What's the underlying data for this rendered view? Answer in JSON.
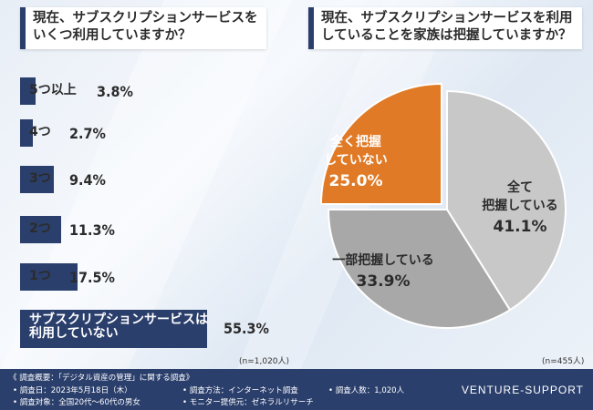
{
  "chart_data": [
    {
      "type": "bar",
      "title": "現在、サブスクリプションサービスを\nいくつ利用していますか？",
      "categories": [
        "5つ以上",
        "4つ",
        "3つ",
        "2つ",
        "1つ",
        "サブスクリプションサービスは\n利用していない"
      ],
      "values": [
        3.8,
        2.7,
        9.4,
        11.3,
        17.5,
        55.3
      ],
      "value_labels": [
        "3.8%",
        "2.7%",
        "9.4%",
        "11.3%",
        "17.5%",
        "55.3%"
      ],
      "orientation": "horizontal",
      "note": "(n=1,020人)",
      "color": "#2b3f6c"
    },
    {
      "type": "pie",
      "title": "現在、サブスクリプションサービスを利用\nしていることを家族は把握していますか？",
      "categories": [
        "全て\n把握している",
        "一部把握している",
        "全く把握\nしていない"
      ],
      "values": [
        41.1,
        33.9,
        25.0
      ],
      "value_labels": [
        "41.1%",
        "33.9%",
        "25.0%"
      ],
      "colors": [
        "#c8c8c8",
        "#a8a8a8",
        "#e07a26"
      ],
      "note": "(n=455人)"
    }
  ],
  "footer": {
    "title": "《 調査概要：「デジタル資産の管理」に関する調査》",
    "period": "• 調査日：2023年5月18日（木）",
    "target": "• 調査対象：全国20代〜60代の男女",
    "method": "• 調査方法：インターネット調査",
    "monitor": "• モニター提供元：ゼネラルリサーチ",
    "count": "• 調査人数：1,020人",
    "brand": "VENTURE-SUPPORT"
  }
}
